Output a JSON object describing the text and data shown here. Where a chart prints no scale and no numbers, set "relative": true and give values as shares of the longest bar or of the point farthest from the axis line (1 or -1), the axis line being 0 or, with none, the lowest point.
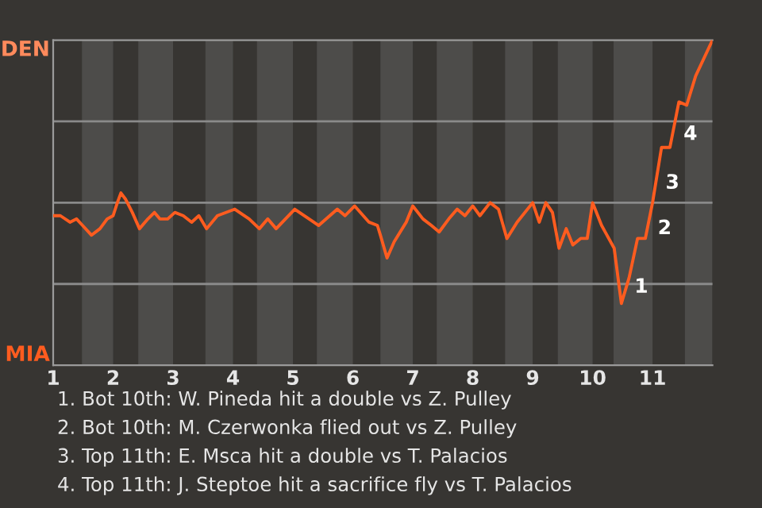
{
  "chart_data": {
    "type": "line",
    "relative": true,
    "x": [
      1.0,
      1.12,
      1.28,
      1.39,
      1.49,
      1.64,
      1.78,
      1.9,
      2.0,
      2.07,
      2.13,
      2.21,
      2.32,
      2.44,
      2.58,
      2.69,
      2.78,
      2.91,
      3.03,
      3.17,
      3.31,
      3.43,
      3.56,
      3.74,
      4.03,
      4.27,
      4.44,
      4.58,
      4.72,
      5.03,
      5.27,
      5.43,
      5.74,
      5.87,
      6.03,
      6.27,
      6.41,
      6.46,
      6.57,
      6.69,
      6.89,
      7.0,
      7.17,
      7.31,
      7.44,
      7.6,
      7.74,
      7.87,
      8.0,
      8.12,
      8.29,
      8.43,
      8.57,
      8.74,
      9.0,
      9.11,
      9.22,
      9.33,
      9.44,
      9.56,
      9.67,
      9.8,
      9.91,
      10.0,
      10.15,
      10.36,
      10.48,
      10.61,
      10.75,
      10.88,
      11.0,
      11.15,
      11.29,
      11.44,
      11.57,
      11.72,
      12.0
    ],
    "series": [
      {
        "color": "#ff5c1f",
        "values": [
          0.46,
          0.46,
          0.44,
          0.45,
          0.43,
          0.4,
          0.42,
          0.45,
          0.46,
          0.5,
          0.53,
          0.51,
          0.47,
          0.42,
          0.45,
          0.47,
          0.45,
          0.45,
          0.47,
          0.46,
          0.44,
          0.46,
          0.42,
          0.46,
          0.48,
          0.45,
          0.42,
          0.45,
          0.42,
          0.48,
          0.45,
          0.43,
          0.48,
          0.46,
          0.49,
          0.44,
          0.43,
          0.4,
          0.33,
          0.38,
          0.44,
          0.49,
          0.45,
          0.43,
          0.41,
          0.45,
          0.48,
          0.46,
          0.49,
          0.46,
          0.5,
          0.48,
          0.39,
          0.44,
          0.5,
          0.44,
          0.5,
          0.47,
          0.36,
          0.42,
          0.37,
          0.39,
          0.39,
          0.5,
          0.43,
          0.36,
          0.19,
          0.27,
          0.39,
          0.39,
          0.5,
          0.67,
          0.67,
          0.81,
          0.8,
          0.89,
          1
        ]
      }
    ],
    "xlim": [
      1,
      12
    ],
    "xticks": [
      1,
      2,
      3,
      4,
      5,
      6,
      7,
      8,
      9,
      10,
      11
    ],
    "ref_lines": [
      {
        "axis": "y",
        "value": 0.25,
        "color": "#8a8a8a"
      },
      {
        "axis": "y",
        "value": 0.5,
        "color": "#8a8a8a"
      },
      {
        "axis": "y",
        "value": 0.75,
        "color": "#8a8a8a"
      }
    ],
    "bands": [
      {
        "axis": "x",
        "from": 1.48,
        "to": 2,
        "color": "#4d4c4a"
      },
      {
        "axis": "x",
        "from": 2.42,
        "to": 3,
        "color": "#4d4c4a"
      },
      {
        "axis": "x",
        "from": 3.54,
        "to": 4,
        "color": "#4d4c4a"
      },
      {
        "axis": "x",
        "from": 4.4,
        "to": 5,
        "color": "#4d4c4a"
      },
      {
        "axis": "x",
        "from": 5.4,
        "to": 6,
        "color": "#4d4c4a"
      },
      {
        "axis": "x",
        "from": 6.46,
        "to": 7,
        "color": "#4d4c4a"
      },
      {
        "axis": "x",
        "from": 7.4,
        "to": 8,
        "color": "#4d4c4a"
      },
      {
        "axis": "x",
        "from": 8.54,
        "to": 9,
        "color": "#4d4c4a"
      },
      {
        "axis": "x",
        "from": 9.42,
        "to": 10,
        "color": "#4d4c4a"
      },
      {
        "axis": "x",
        "from": 10.35,
        "to": 11,
        "color": "#4d4c4a"
      },
      {
        "axis": "x",
        "from": 11.54,
        "to": 12,
        "color": "#4d4c4a"
      }
    ],
    "annotations": [
      "DEN",
      "MIA",
      {
        "text": "1",
        "x": 10.55,
        "y": 0.24
      },
      {
        "text": "2",
        "x": 10.94,
        "y": 0.42
      },
      {
        "text": "3",
        "x": 11.07,
        "y": 0.56
      },
      {
        "text": "4",
        "x": 11.37,
        "y": 0.71
      },
      "1. Bot 10th: W. Pineda hit a double vs Z. Pulley",
      "2. Bot 10th: M. Czerwonka flied out vs Z. Pulley",
      "3. Top 11th: E. Msca hit a double vs T. Palacios",
      "4. Top 11th: J. Steptoe hit a sacrifice fly vs T. Palacios"
    ]
  }
}
